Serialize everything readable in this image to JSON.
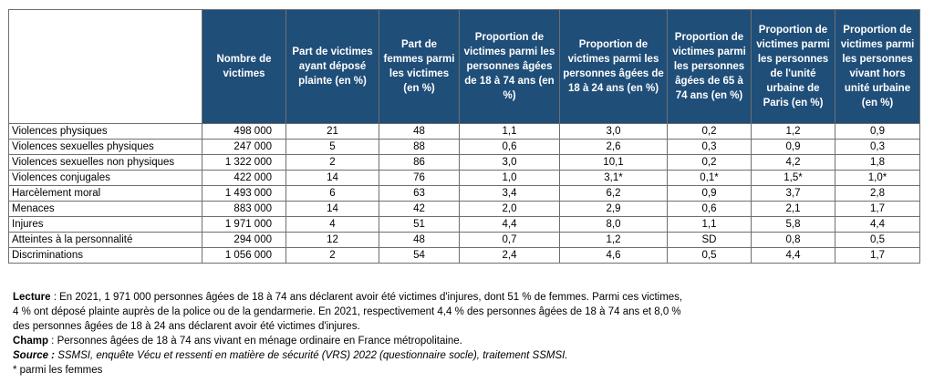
{
  "table": {
    "headers": [
      "",
      "Nombre de victimes",
      "Part de victimes ayant déposé plainte (en %)",
      "Part de femmes parmi les victimes (en %)",
      "Proportion de victimes parmi les personnes âgées de 18 à 74 ans (en %)",
      "Proportion de victimes parmi les personnes âgées de 18 à 24 ans (en %)",
      "Proportion de victimes parmi les personnes âgées de 65 à 74 ans (en %)",
      "Proportion de victimes parmi les personnes de l'unité urbaine de Paris (en %)",
      "Proportion de victimes parmi les personnes vivant hors unité urbaine (en %)"
    ],
    "rows": [
      [
        "Violences physiques",
        "498 000",
        "21",
        "48",
        "1,1",
        "3,0",
        "0,2",
        "1,2",
        "0,9"
      ],
      [
        "Violences sexuelles physiques",
        "247 000",
        "5",
        "88",
        "0,6",
        "2,6",
        "0,3",
        "0,9",
        "0,3"
      ],
      [
        "Violences sexuelles non physiques",
        "1 322 000",
        "2",
        "86",
        "3,0",
        "10,1",
        "0,2",
        "4,2",
        "1,8"
      ],
      [
        "Violences conjugales",
        "422 000",
        "14",
        "76",
        "1,0",
        "3,1*",
        "0,1*",
        "1,5*",
        "1,0*"
      ],
      [
        "Harcèlement moral",
        "1 493 000",
        "6",
        "63",
        "3,4",
        "6,2",
        "0,9",
        "3,7",
        "2,8"
      ],
      [
        "Menaces",
        "883 000",
        "14",
        "42",
        "2,0",
        "2,9",
        "0,6",
        "2,1",
        "1,7"
      ],
      [
        "Injures",
        "1 971 000",
        "4",
        "51",
        "4,4",
        "8,0",
        "1,1",
        "5,8",
        "4,4"
      ],
      [
        "Atteintes à la personnalité",
        "294 000",
        "12",
        "48",
        "0,7",
        "1,2",
        "SD",
        "0,8",
        "0,5"
      ],
      [
        "Discriminations",
        "1 056 000",
        "2",
        "54",
        "2,4",
        "4,6",
        "0,5",
        "4,4",
        "1,7"
      ]
    ]
  },
  "notes": {
    "lecture_label": "Lecture",
    "lecture_lines": [
      " : En 2021, 1 971 000 personnes âgées de 18 à 74 ans déclarent avoir été victimes d'injures, dont 51 % de femmes. Parmi ces victimes,",
      "4 % ont déposé plainte auprès de la police ou de la gendarmerie. En 2021, respectivement 4,4 % des personnes âgées de 18 à 74 ans et 8,0 %",
      "des personnes âgées de 18 à 24 ans déclarent avoir été victimes d'injures."
    ],
    "champ_label": "Champ",
    "champ_text": " : Personnes âgées de 18 à 74 ans vivant en ménage ordinaire en France métropolitaine.",
    "source_label": "Source :",
    "source_text": " SSMSI, enquête Vécu et ressenti en matière de sécurité (VRS) 2022 (questionnaire socle), traitement SSMSI.",
    "footnote": "* parmi les femmes"
  }
}
